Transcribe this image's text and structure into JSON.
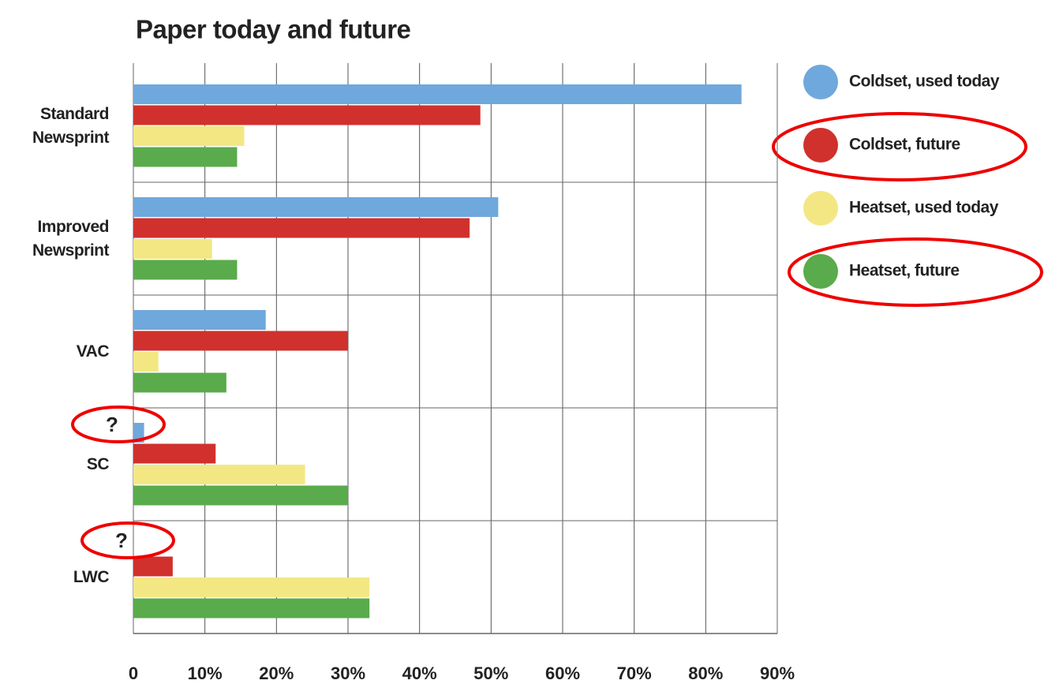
{
  "chart_data": {
    "type": "hbar",
    "title": "Paper today and future",
    "categories": [
      "Standard Newsprint",
      "Improved Newsprint",
      "VAC",
      "SC",
      "LWC"
    ],
    "series": [
      {
        "name": "Coldset, used today",
        "color": "#6fa8dc",
        "values": [
          85,
          51,
          18.5,
          1.5,
          null
        ]
      },
      {
        "name": "Coldset, future",
        "color": "#d0312d",
        "values": [
          48.5,
          47,
          30,
          11.5,
          5.5
        ]
      },
      {
        "name": "Heatset, used today",
        "color": "#f3e784",
        "values": [
          15.5,
          11,
          3.5,
          24,
          33
        ]
      },
      {
        "name": "Heatset, future",
        "color": "#5aab4b",
        "values": [
          14.5,
          14.5,
          13,
          30,
          33
        ]
      }
    ],
    "xlim": [
      0,
      90
    ],
    "xticks": [
      0,
      {
        "value": 10,
        "label": "10%"
      },
      {
        "value": 20,
        "label": "20%"
      },
      {
        "value": 30,
        "label": "30%"
      },
      {
        "value": 40,
        "label": "40%"
      },
      {
        "value": 50,
        "label": "50%"
      },
      {
        "value": 60,
        "label": "60%"
      },
      {
        "value": 70,
        "label": "70%"
      },
      {
        "value": 80,
        "label": "80%"
      },
      {
        "value": 90,
        "label": "90%"
      }
    ],
    "grid": true,
    "legend": "right",
    "annotations": [
      "?",
      "?"
    ]
  }
}
